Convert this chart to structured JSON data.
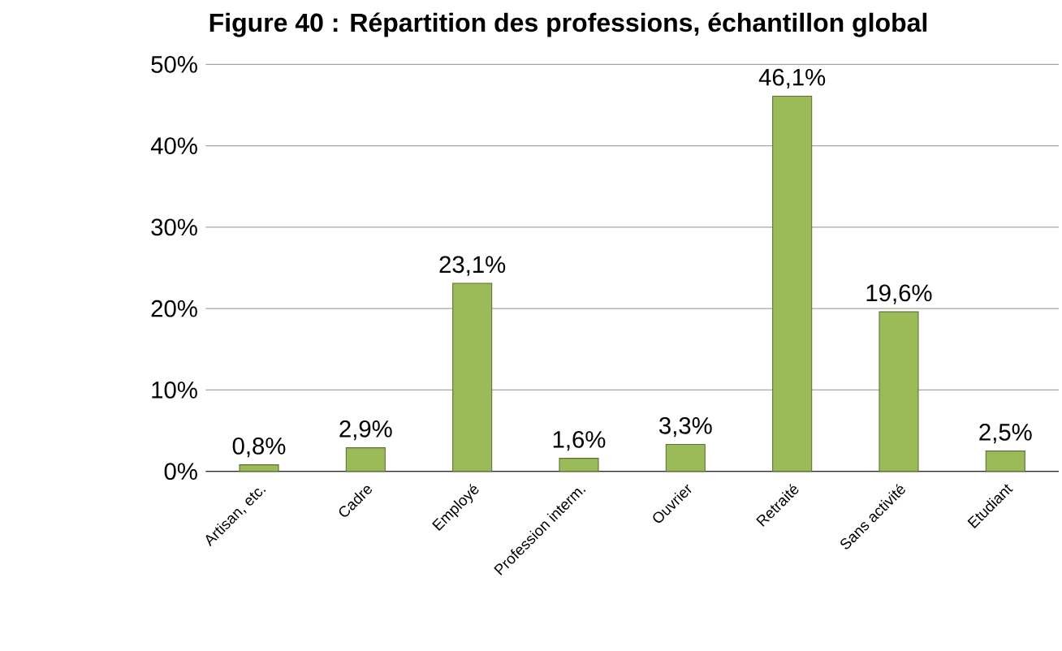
{
  "chart_data": {
    "type": "bar",
    "title": "Figure 40 : Répartition des professions, échantillon global",
    "categories": [
      "Artisan, etc.",
      "Cadre",
      "Employé",
      "Profession interm.",
      "Ouvrier",
      "Retraité",
      "Sans activité",
      "Etudiant"
    ],
    "values": [
      0.8,
      2.9,
      23.1,
      1.6,
      3.3,
      46.1,
      19.6,
      2.5
    ],
    "value_labels": [
      "0,8%",
      "2,9%",
      "23,1%",
      "1,6%",
      "3,3%",
      "46,1%",
      "19,6%",
      "2,5%"
    ],
    "color": "#9bbb59",
    "ylim": [
      0,
      50
    ],
    "yticks": [
      {
        "value": 0,
        "label": "0%"
      },
      {
        "value": 10,
        "label": "10%"
      },
      {
        "value": 20,
        "label": "20%"
      },
      {
        "value": 30,
        "label": "30%"
      },
      {
        "value": 40,
        "label": "40%"
      },
      {
        "value": 50,
        "label": "50%"
      }
    ],
    "grid": "y"
  }
}
